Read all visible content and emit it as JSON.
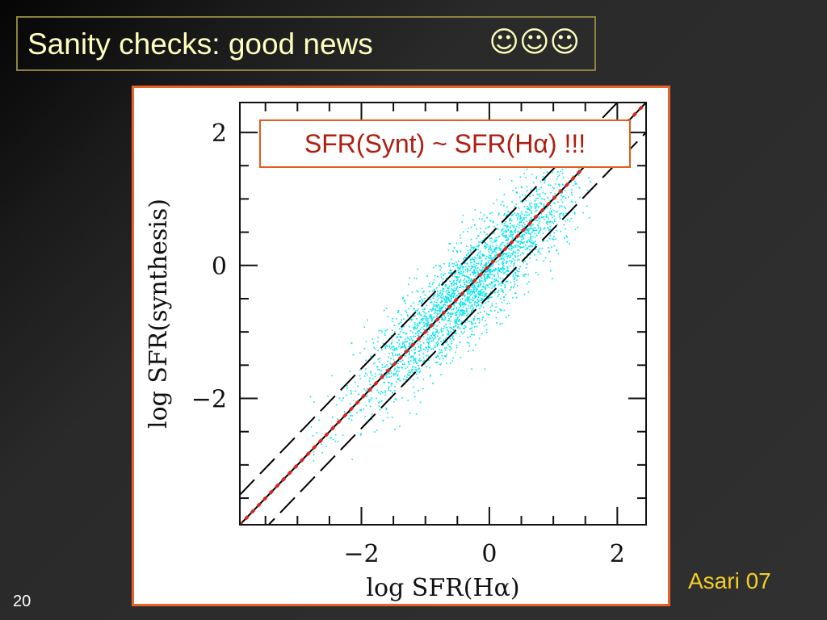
{
  "slide": {
    "title": "Sanity checks: good news",
    "title_icons": [
      "smiley-face-icon",
      "smiley-face-icon",
      "smiley-face-icon"
    ],
    "callout": "SFR(Synt) ~ SFR(Hα) !!!",
    "credit": "Asari 07",
    "page_number": "20"
  },
  "colors": {
    "background": "#2a2a2a",
    "title_text": "#ffffc0",
    "title_border": "#8c8340",
    "panel_border": "#e8622a",
    "callout_text": "#b01e10",
    "credit_text": "#f2cf2a",
    "scatter": "#00e5ee",
    "fit_line": "#d9241c"
  },
  "chart_data": {
    "type": "scatter",
    "xlabel": "log SFR(Hα)",
    "ylabel": "log SFR(synthesis)",
    "xlim": [
      -3.9,
      2.45
    ],
    "ylim": [
      -3.9,
      2.45
    ],
    "xticks": [
      -2,
      0,
      2
    ],
    "yticks": [
      -2,
      0,
      2
    ],
    "xtick_labels": [
      "−2",
      "0",
      "2"
    ],
    "ytick_labels": [
      "−2",
      "0",
      "2"
    ],
    "grid": false,
    "scatter_cloud": {
      "description_free": true,
      "center": [
        -0.3,
        -0.3
      ],
      "x_extent": [
        -2.8,
        1.3
      ],
      "y_extent": [
        -3.0,
        1.6
      ]
    },
    "lines": [
      {
        "style": "solid",
        "color": "#000000",
        "x": [
          -3.9,
          2.45
        ],
        "y": [
          -3.9,
          2.45
        ]
      },
      {
        "style": "dashed",
        "color": "#000000",
        "x": [
          -3.9,
          2.45
        ],
        "y": [
          -3.45,
          2.9
        ]
      },
      {
        "style": "dashed",
        "color": "#000000",
        "x": [
          -3.9,
          2.45
        ],
        "y": [
          -4.35,
          2.0
        ]
      },
      {
        "style": "dotted",
        "color": "#d9241c",
        "x": [
          -3.9,
          2.45
        ],
        "y": [
          -3.9,
          2.45
        ]
      }
    ]
  }
}
